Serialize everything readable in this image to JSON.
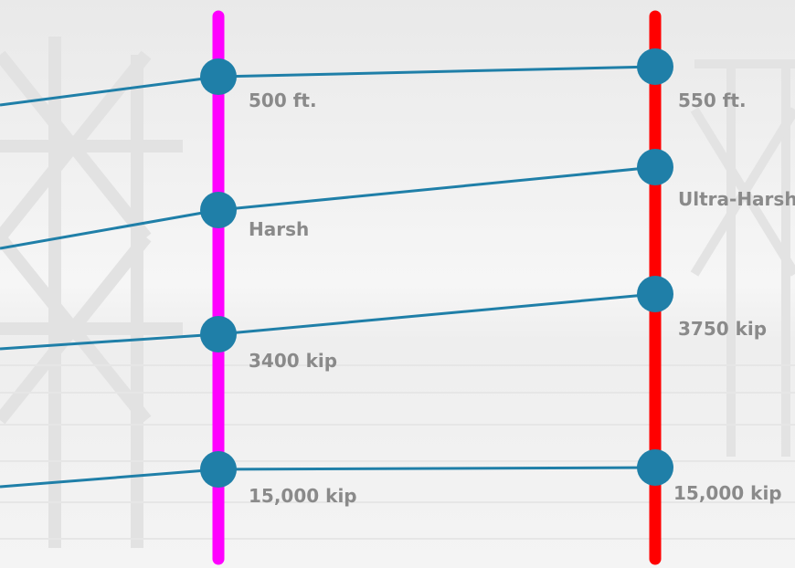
{
  "colors": {
    "left_axis": "#ff00ff",
    "right_axis": "#ff0000",
    "node": "#1f7fa8",
    "connector": "#1f7fa8",
    "label_text": "#8a8a8a"
  },
  "left_column": {
    "labels": [
      "500 ft.",
      "Harsh",
      "3400 kip",
      "15,000 kip"
    ]
  },
  "right_column": {
    "labels": [
      "550 ft.",
      "Ultra-Harsh",
      "3750 kip",
      "15,000 kip"
    ]
  }
}
